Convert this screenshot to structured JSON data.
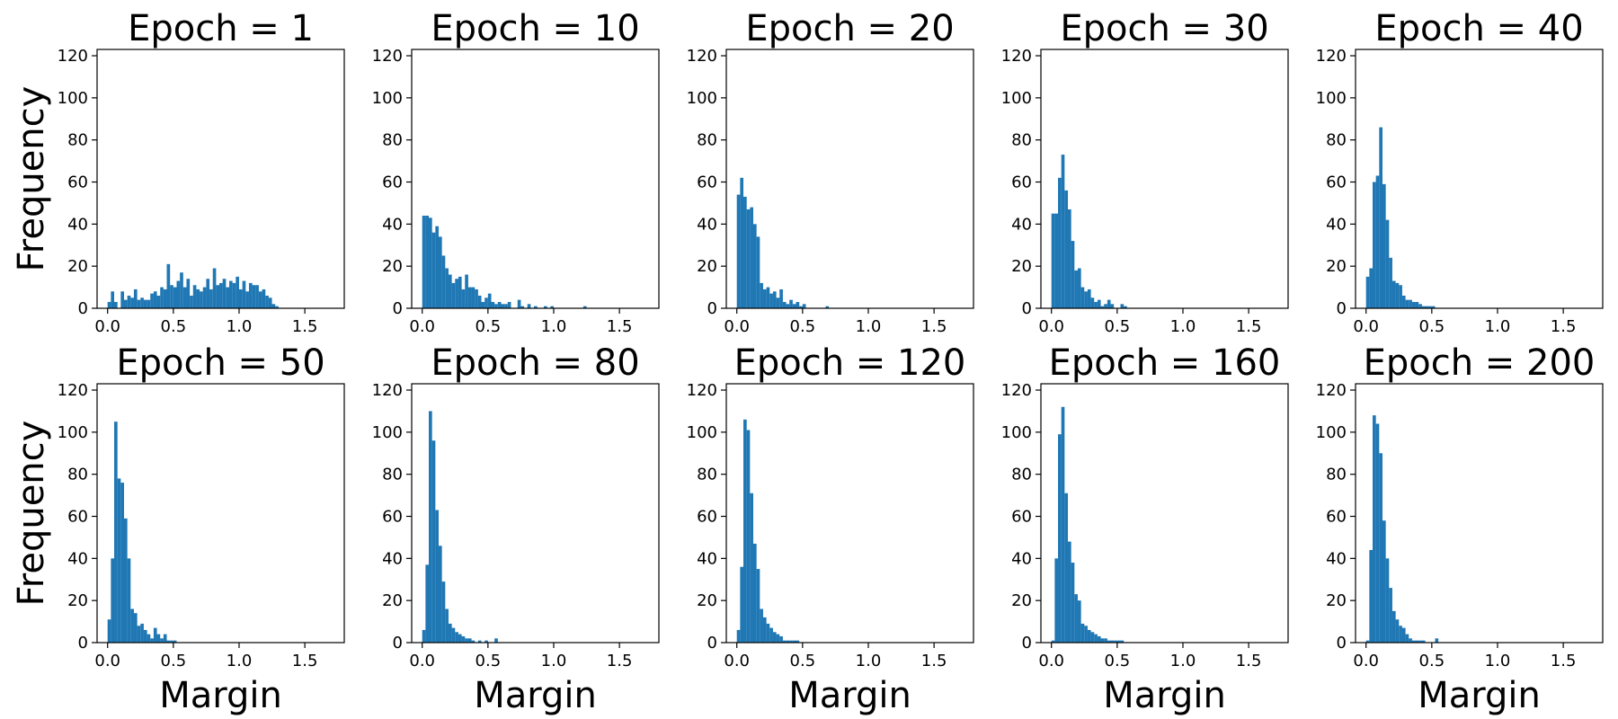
{
  "colors": {
    "bar": "#1f77b4",
    "axes": "#000000",
    "background": "#ffffff"
  },
  "chart_data": [
    {
      "type": "bar",
      "title": "Epoch = 1",
      "xlabel": "",
      "ylabel": "Frequency",
      "xlim": [
        -0.08,
        1.8
      ],
      "ylim": [
        0,
        123
      ],
      "bin_width": 0.025,
      "xticks": [
        "0.0",
        "0.5",
        "1.0",
        "1.5"
      ],
      "yticks": [
        "0",
        "20",
        "40",
        "60",
        "80",
        "100",
        "120"
      ],
      "bin_start": 0.0,
      "values": [
        3,
        8,
        3,
        0,
        8,
        4,
        6,
        5,
        9,
        4,
        5,
        4,
        4,
        7,
        8,
        6,
        10,
        9,
        21,
        11,
        10,
        13,
        17,
        10,
        14,
        6,
        11,
        9,
        8,
        10,
        14,
        9,
        19,
        11,
        12,
        14,
        10,
        13,
        12,
        15,
        9,
        13,
        8,
        12,
        11,
        11,
        8,
        9,
        6,
        5,
        2,
        1
      ]
    },
    {
      "type": "bar",
      "title": "Epoch = 10",
      "xlabel": "",
      "ylabel": "",
      "xlim": [
        -0.08,
        1.8
      ],
      "ylim": [
        0,
        123
      ],
      "bin_width": 0.025,
      "xticks": [
        "0.0",
        "0.5",
        "1.0",
        "1.5"
      ],
      "yticks": [
        "0",
        "20",
        "40",
        "60",
        "80",
        "100",
        "120"
      ],
      "bin_start": 0.0,
      "values": [
        44,
        44,
        43,
        36,
        39,
        34,
        25,
        19,
        16,
        12,
        14,
        15,
        9,
        16,
        10,
        10,
        9,
        6,
        3,
        5,
        7,
        3,
        2,
        3,
        2,
        2,
        3,
        0,
        0,
        4,
        1,
        0,
        2,
        0,
        1,
        0,
        0,
        1,
        0,
        1,
        0,
        0,
        0,
        0,
        0,
        0,
        0,
        0,
        0,
        1
      ]
    },
    {
      "type": "bar",
      "title": "Epoch = 20",
      "xlabel": "",
      "ylabel": "",
      "xlim": [
        -0.08,
        1.8
      ],
      "ylim": [
        0,
        123
      ],
      "bin_width": 0.025,
      "xticks": [
        "0.0",
        "0.5",
        "1.0",
        "1.5"
      ],
      "yticks": [
        "0",
        "20",
        "40",
        "60",
        "80",
        "100",
        "120"
      ],
      "bin_start": 0.0,
      "values": [
        54,
        62,
        53,
        47,
        48,
        40,
        34,
        12,
        9,
        10,
        7,
        8,
        5,
        9,
        3,
        2,
        4,
        2,
        3,
        1,
        2,
        0,
        0,
        0,
        0,
        0,
        0,
        1
      ]
    },
    {
      "type": "bar",
      "title": "Epoch = 30",
      "xlabel": "",
      "ylabel": "",
      "xlim": [
        -0.08,
        1.8
      ],
      "ylim": [
        0,
        123
      ],
      "bin_width": 0.025,
      "xticks": [
        "0.0",
        "0.5",
        "1.0",
        "1.5"
      ],
      "yticks": [
        "0",
        "20",
        "40",
        "60",
        "80",
        "100",
        "120"
      ],
      "bin_start": 0.0,
      "values": [
        45,
        45,
        62,
        73,
        56,
        47,
        32,
        18,
        19,
        10,
        8,
        9,
        5,
        3,
        4,
        1,
        2,
        4,
        2,
        0,
        0,
        2,
        1
      ]
    },
    {
      "type": "bar",
      "title": "Epoch = 40",
      "xlabel": "",
      "ylabel": "",
      "xlim": [
        -0.08,
        1.8
      ],
      "ylim": [
        0,
        123
      ],
      "bin_width": 0.025,
      "xticks": [
        "0.0",
        "0.5",
        "1.0",
        "1.5"
      ],
      "yticks": [
        "0",
        "20",
        "40",
        "60",
        "80",
        "100",
        "120"
      ],
      "bin_start": 0.0,
      "values": [
        15,
        19,
        60,
        63,
        86,
        59,
        42,
        24,
        13,
        12,
        11,
        6,
        4,
        4,
        3,
        3,
        2,
        1,
        1,
        1,
        1
      ]
    },
    {
      "type": "bar",
      "title": "Epoch = 50",
      "xlabel": "Margin",
      "ylabel": "Frequency",
      "xlim": [
        -0.08,
        1.8
      ],
      "ylim": [
        0,
        123
      ],
      "bin_width": 0.025,
      "xticks": [
        "0.0",
        "0.5",
        "1.0",
        "1.5"
      ],
      "yticks": [
        "0",
        "20",
        "40",
        "60",
        "80",
        "100",
        "120"
      ],
      "bin_start": 0.0,
      "values": [
        11,
        40,
        105,
        78,
        76,
        59,
        40,
        16,
        14,
        8,
        9,
        6,
        4,
        2,
        7,
        4,
        2,
        4,
        1,
        1,
        1
      ]
    },
    {
      "type": "bar",
      "title": "Epoch = 80",
      "xlabel": "Margin",
      "ylabel": "",
      "xlim": [
        -0.08,
        1.8
      ],
      "ylim": [
        0,
        123
      ],
      "bin_width": 0.025,
      "xticks": [
        "0.0",
        "0.5",
        "1.0",
        "1.5"
      ],
      "yticks": [
        "0",
        "20",
        "40",
        "60",
        "80",
        "100",
        "120"
      ],
      "bin_start": 0.0,
      "values": [
        6,
        37,
        110,
        96,
        63,
        46,
        29,
        16,
        9,
        7,
        5,
        4,
        3,
        2,
        2,
        1,
        0,
        1,
        0,
        1,
        0,
        0,
        2
      ]
    },
    {
      "type": "bar",
      "title": "Epoch = 120",
      "xlabel": "Margin",
      "ylabel": "",
      "xlim": [
        -0.08,
        1.8
      ],
      "ylim": [
        0,
        123
      ],
      "bin_width": 0.025,
      "xticks": [
        "0.0",
        "0.5",
        "1.0",
        "1.5"
      ],
      "yticks": [
        "0",
        "20",
        "40",
        "60",
        "80",
        "100",
        "120"
      ],
      "bin_start": 0.0,
      "values": [
        6,
        36,
        106,
        101,
        71,
        47,
        35,
        16,
        12,
        9,
        7,
        5,
        4,
        3,
        1,
        1,
        1,
        1,
        1
      ]
    },
    {
      "type": "bar",
      "title": "Epoch = 160",
      "xlabel": "Margin",
      "ylabel": "",
      "xlim": [
        -0.08,
        1.8
      ],
      "ylim": [
        0,
        123
      ],
      "bin_width": 0.025,
      "xticks": [
        "0.0",
        "0.5",
        "1.0",
        "1.5"
      ],
      "yticks": [
        "0",
        "20",
        "40",
        "60",
        "80",
        "100",
        "120"
      ],
      "bin_start": 0.0,
      "values": [
        1,
        40,
        99,
        112,
        71,
        48,
        38,
        23,
        20,
        9,
        8,
        6,
        5,
        4,
        3,
        2,
        2,
        1,
        1,
        1,
        1,
        1
      ]
    },
    {
      "type": "bar",
      "title": "Epoch = 200",
      "xlabel": "Margin",
      "ylabel": "",
      "xlim": [
        -0.08,
        1.8
      ],
      "ylim": [
        0,
        123
      ],
      "bin_width": 0.025,
      "xticks": [
        "0.0",
        "0.5",
        "1.0",
        "1.5"
      ],
      "yticks": [
        "0",
        "20",
        "40",
        "60",
        "80",
        "100",
        "120"
      ],
      "bin_start": 0.0,
      "values": [
        1,
        44,
        108,
        104,
        90,
        58,
        40,
        26,
        15,
        11,
        8,
        7,
        4,
        2,
        1,
        1,
        1,
        1,
        0,
        0,
        0,
        2
      ]
    }
  ]
}
